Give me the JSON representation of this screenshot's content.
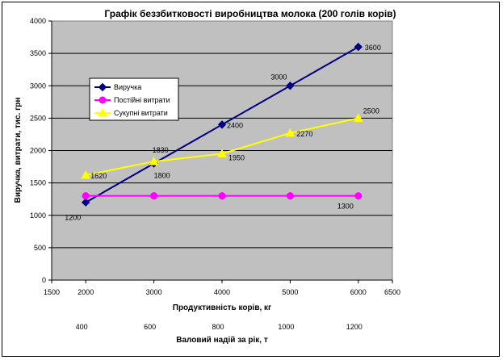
{
  "chart_data": {
    "type": "line",
    "title": "Графік беззбитковості виробництва молока (200 голів корів)",
    "xlabel": "Продуктивність корів, кг",
    "ylabel": "Виручка, витрати, тис. грн",
    "xlim": [
      1500,
      6500
    ],
    "ylim": [
      0,
      4000
    ],
    "x_ticks": [
      "1500",
      "2000",
      "3000",
      "4000",
      "5000",
      "6000",
      "6500"
    ],
    "y_ticks": [
      "0",
      "500",
      "1000",
      "1500",
      "2000",
      "2500",
      "3000",
      "3500",
      "4000"
    ],
    "x": [
      2000,
      3000,
      4000,
      5000,
      6000
    ],
    "grid": "horizontal",
    "legend": "left",
    "series": [
      {
        "name": "Виручка",
        "color": "#000080",
        "marker": "diamond",
        "values": [
          1200,
          1800,
          2400,
          3000,
          3600
        ],
        "labels": [
          "1200",
          "1800",
          "2400",
          "3000",
          "3600"
        ]
      },
      {
        "name": "Постійні витрати",
        "color": "#FF00FF",
        "marker": "circle",
        "values": [
          1300,
          1300,
          1300,
          1300,
          1300
        ],
        "labels": [
          "",
          "",
          "",
          "",
          "1300"
        ]
      },
      {
        "name": "Сукупні витрати",
        "color": "#FFFF00",
        "marker": "triangle",
        "values": [
          1620,
          1830,
          1950,
          2270,
          2500
        ],
        "labels": [
          "1620",
          "1830",
          "1950",
          "2270",
          "2500"
        ]
      }
    ],
    "secondary_axis": {
      "label": "Валовий надій за рік, т",
      "ticks": [
        "400",
        "600",
        "800",
        "1000",
        "1200"
      ]
    }
  }
}
